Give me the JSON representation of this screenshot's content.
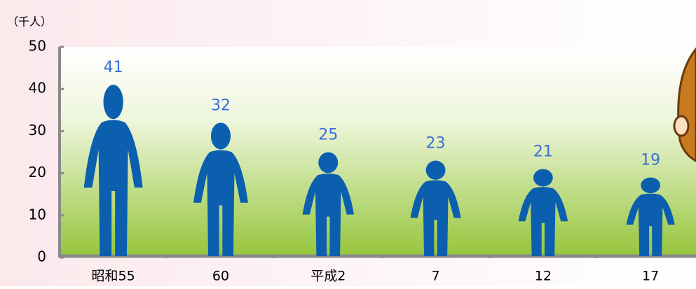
{
  "chart_data": {
    "type": "pictogram-bar",
    "y_axis_label": "（千人）",
    "categories": [
      "昭和55",
      "60",
      "平成2",
      "7",
      "12",
      "17"
    ],
    "values": [
      41,
      32,
      25,
      23,
      21,
      19
    ],
    "color": "#0b5fae",
    "label_color": "#3a6fd8",
    "ylim": [
      0,
      50
    ],
    "yticks": [
      0,
      10,
      20,
      30,
      40,
      50
    ]
  }
}
